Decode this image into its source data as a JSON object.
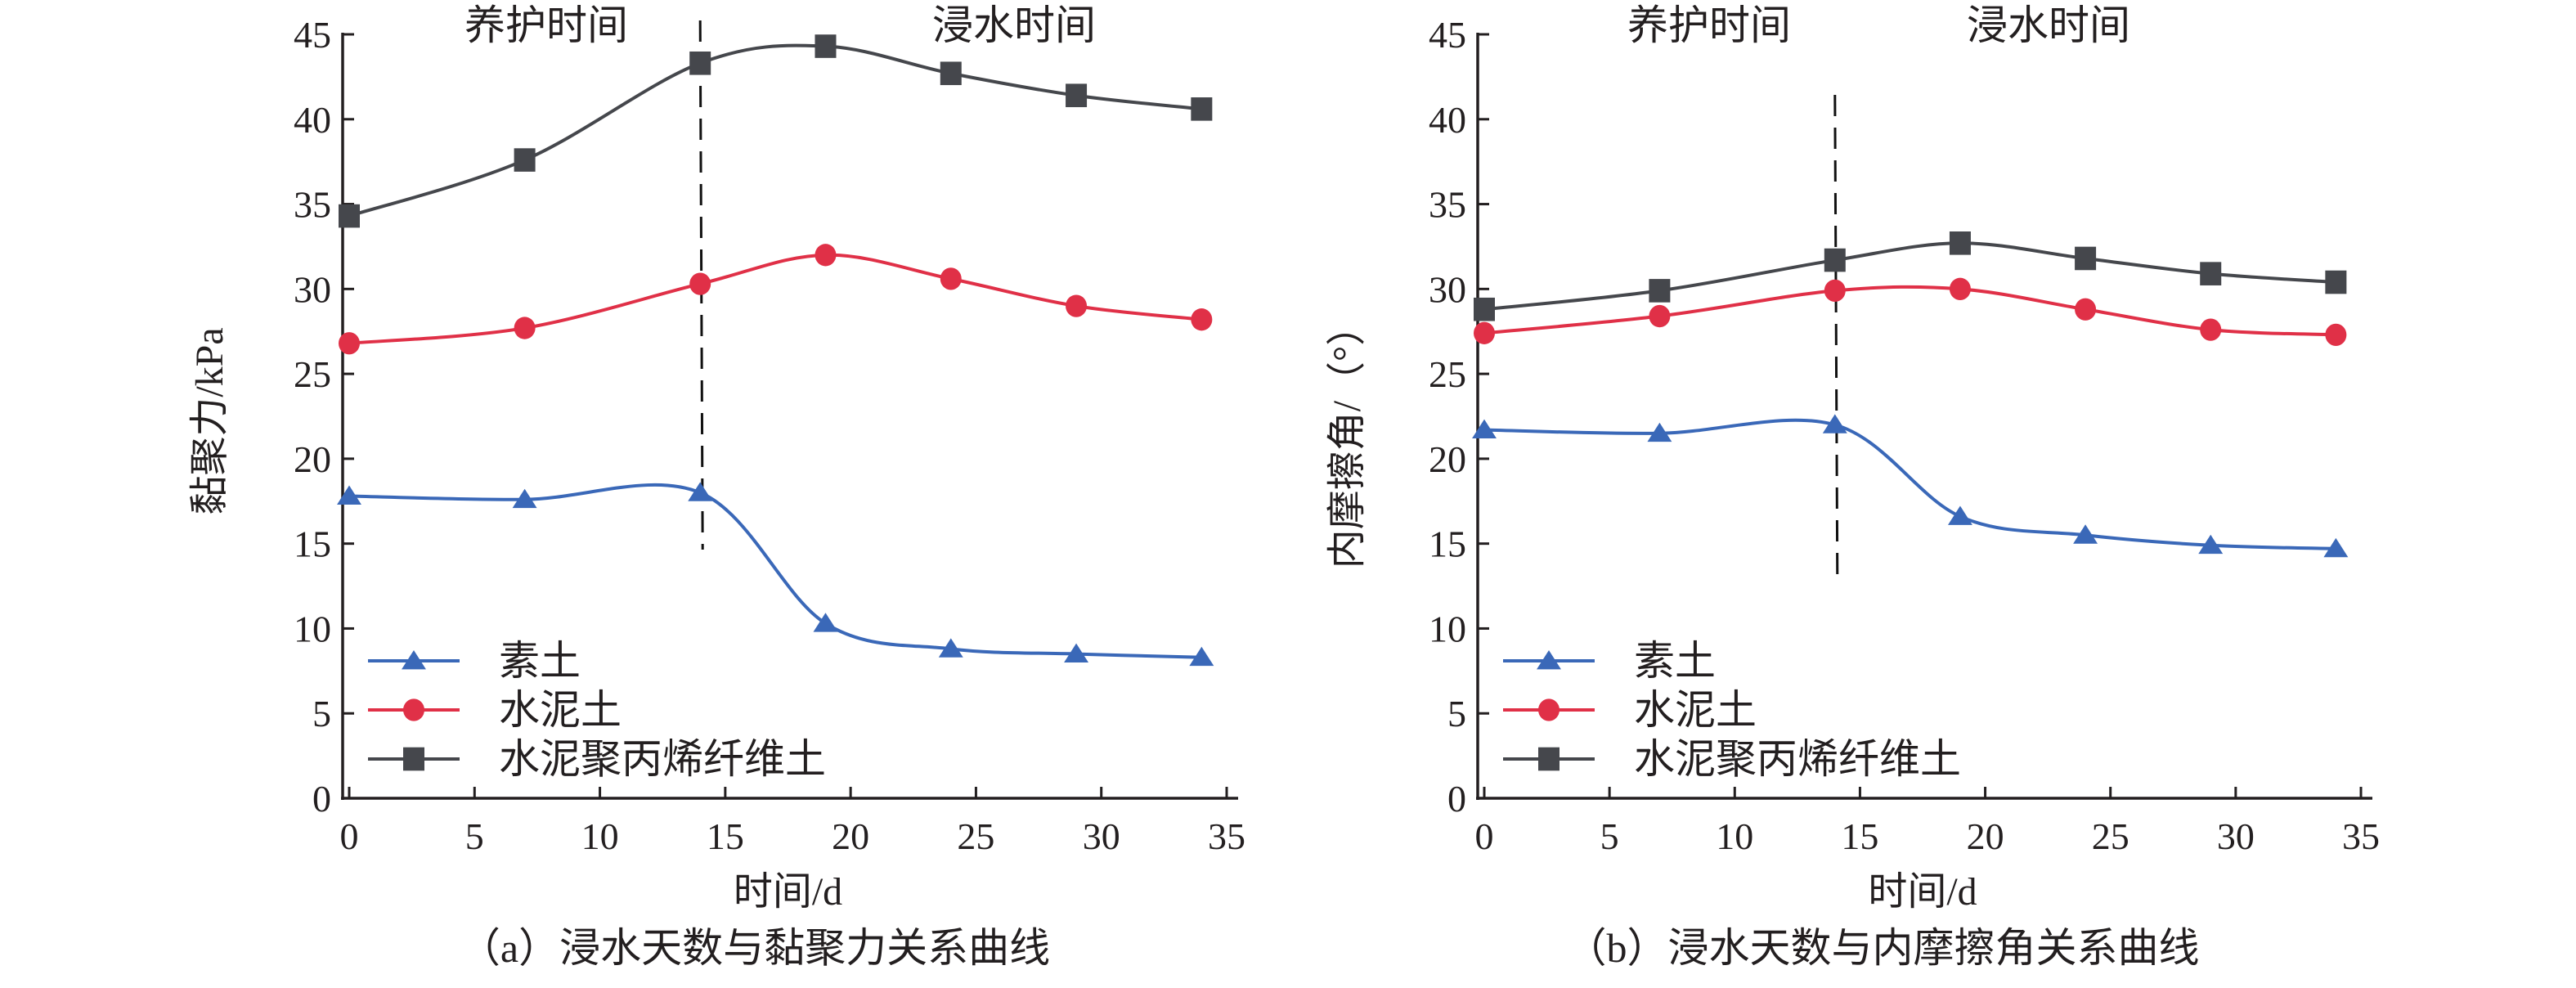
{
  "colors": {
    "su_tu": "#3a68b8",
    "shui_ni_tu": "#e03047",
    "fiber_tu": "#45474c",
    "axis": "#231f20"
  },
  "chart_data": [
    {
      "type": "line",
      "panel": "a",
      "caption": "（a）浸水天数与黏聚力关系曲线",
      "xlabel": "时间/d",
      "ylabel": "黏聚力/kPa",
      "xlim": [
        0,
        35
      ],
      "ylim": [
        0,
        45
      ],
      "xticks": [
        "0",
        "5",
        "10",
        "15",
        "20",
        "25",
        "30",
        "35"
      ],
      "yticks": [
        "0",
        "5",
        "10",
        "15",
        "20",
        "25",
        "30",
        "35",
        "40",
        "45"
      ],
      "grid": false,
      "legend_position": "bottom-left",
      "annotations": {
        "divider_x": 14,
        "left_label": "养护时间",
        "right_label": "浸水时间"
      },
      "x": [
        0,
        7,
        14,
        19,
        24,
        29,
        34
      ],
      "series": [
        {
          "name": "素土",
          "marker": "triangle",
          "color_key": "su_tu",
          "values": [
            17.8,
            17.6,
            18.0,
            10.3,
            8.8,
            8.5,
            8.3
          ]
        },
        {
          "name": "水泥土",
          "marker": "circle",
          "color_key": "shui_ni_tu",
          "values": [
            26.8,
            27.7,
            30.3,
            32.0,
            30.6,
            29.0,
            28.2
          ]
        },
        {
          "name": "水泥聚丙烯纤维土",
          "marker": "square",
          "color_key": "fiber_tu",
          "values": [
            34.3,
            37.6,
            43.3,
            44.3,
            42.7,
            41.4,
            40.6
          ]
        }
      ]
    },
    {
      "type": "line",
      "panel": "b",
      "caption": "（b）浸水天数与内摩擦角关系曲线",
      "xlabel": "时间/d",
      "ylabel": "内摩擦角/（°）",
      "xlim": [
        0,
        35
      ],
      "ylim": [
        0,
        45
      ],
      "xticks": [
        "0",
        "5",
        "10",
        "15",
        "20",
        "25",
        "30",
        "35"
      ],
      "yticks": [
        "0",
        "5",
        "10",
        "15",
        "20",
        "25",
        "30",
        "35",
        "40",
        "45"
      ],
      "grid": false,
      "legend_position": "bottom-left",
      "annotations": {
        "divider_x": 14,
        "left_label": "养护时间",
        "right_label": "浸水时间"
      },
      "x": [
        0,
        7,
        14,
        19,
        24,
        29,
        34
      ],
      "series": [
        {
          "name": "素土",
          "marker": "triangle",
          "color_key": "su_tu",
          "values": [
            21.7,
            21.5,
            22.0,
            16.6,
            15.5,
            14.9,
            14.7
          ]
        },
        {
          "name": "水泥土",
          "marker": "circle",
          "color_key": "shui_ni_tu",
          "values": [
            27.4,
            28.4,
            29.9,
            30.0,
            28.8,
            27.6,
            27.3
          ]
        },
        {
          "name": "水泥聚丙烯纤维土",
          "marker": "square",
          "color_key": "fiber_tu",
          "values": [
            28.8,
            29.9,
            31.7,
            32.7,
            31.8,
            30.9,
            30.4
          ]
        }
      ]
    }
  ]
}
